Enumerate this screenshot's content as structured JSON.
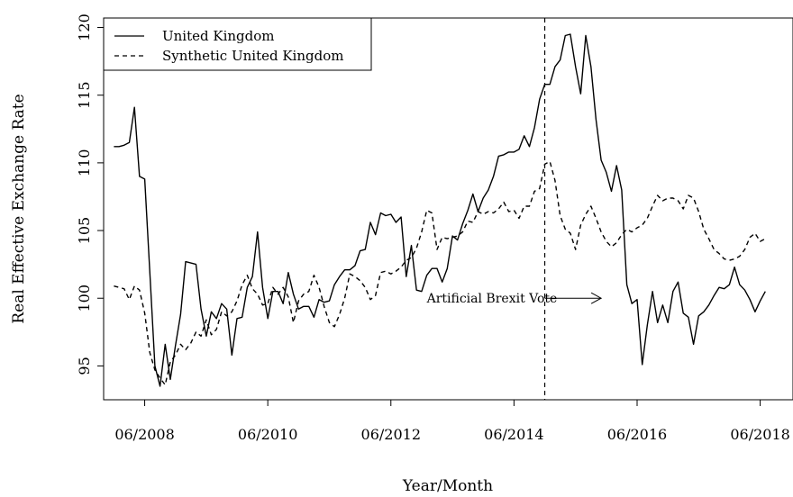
{
  "chart_data": {
    "type": "line",
    "title": "",
    "xlabel": "Year/Month",
    "ylabel": "Real Effective Exchange Rate",
    "x_tick_labels": [
      "06/2008",
      "06/2010",
      "06/2012",
      "06/2014",
      "06/2016",
      "06/2018"
    ],
    "x_tick_values": [
      2008.417,
      2010.417,
      2012.417,
      2014.417,
      2016.417,
      2018.417
    ],
    "y_ticks": [
      95,
      100,
      105,
      110,
      115,
      120
    ],
    "ylim": [
      92.5,
      120.7
    ],
    "xlim": [
      2007.75,
      2018.95
    ],
    "grid": false,
    "legend_position": "top-left",
    "series": [
      {
        "name": "United Kingdom",
        "line_style": "solid",
        "points": [
          [
            2007.917,
            111.2
          ],
          [
            2008.0,
            111.2
          ],
          [
            2008.083,
            111.3
          ],
          [
            2008.167,
            111.5
          ],
          [
            2008.25,
            114.1
          ],
          [
            2008.333,
            109.0
          ],
          [
            2008.417,
            108.8
          ],
          [
            2008.5,
            102.0
          ],
          [
            2008.583,
            95.0
          ],
          [
            2008.667,
            93.5
          ],
          [
            2008.75,
            96.6
          ],
          [
            2008.833,
            94.0
          ],
          [
            2008.917,
            96.5
          ],
          [
            2009.0,
            98.8
          ],
          [
            2009.083,
            102.7
          ],
          [
            2009.167,
            102.6
          ],
          [
            2009.25,
            102.5
          ],
          [
            2009.333,
            99.2
          ],
          [
            2009.417,
            97.2
          ],
          [
            2009.5,
            99.0
          ],
          [
            2009.583,
            98.5
          ],
          [
            2009.667,
            99.6
          ],
          [
            2009.75,
            99.2
          ],
          [
            2009.833,
            95.8
          ],
          [
            2009.917,
            98.5
          ],
          [
            2010.0,
            98.6
          ],
          [
            2010.083,
            100.8
          ],
          [
            2010.167,
            101.6
          ],
          [
            2010.25,
            104.9
          ],
          [
            2010.333,
            100.8
          ],
          [
            2010.417,
            98.5
          ],
          [
            2010.5,
            100.5
          ],
          [
            2010.583,
            100.5
          ],
          [
            2010.667,
            99.6
          ],
          [
            2010.75,
            101.9
          ],
          [
            2010.833,
            100.3
          ],
          [
            2010.917,
            99.2
          ],
          [
            2011.0,
            99.4
          ],
          [
            2011.083,
            99.4
          ],
          [
            2011.167,
            98.6
          ],
          [
            2011.25,
            99.9
          ],
          [
            2011.333,
            99.7
          ],
          [
            2011.417,
            99.8
          ],
          [
            2011.5,
            101.0
          ],
          [
            2011.583,
            101.6
          ],
          [
            2011.667,
            102.1
          ],
          [
            2011.75,
            102.1
          ],
          [
            2011.833,
            102.4
          ],
          [
            2011.917,
            103.5
          ],
          [
            2012.0,
            103.6
          ],
          [
            2012.083,
            105.6
          ],
          [
            2012.167,
            104.7
          ],
          [
            2012.25,
            106.3
          ],
          [
            2012.333,
            106.1
          ],
          [
            2012.417,
            106.2
          ],
          [
            2012.5,
            105.6
          ],
          [
            2012.583,
            106.0
          ],
          [
            2012.667,
            101.6
          ],
          [
            2012.75,
            103.9
          ],
          [
            2012.833,
            100.6
          ],
          [
            2012.917,
            100.5
          ],
          [
            2013.0,
            101.7
          ],
          [
            2013.083,
            102.2
          ],
          [
            2013.167,
            102.2
          ],
          [
            2013.25,
            101.2
          ],
          [
            2013.333,
            102.2
          ],
          [
            2013.417,
            104.6
          ],
          [
            2013.5,
            104.3
          ],
          [
            2013.583,
            105.5
          ],
          [
            2013.667,
            106.5
          ],
          [
            2013.75,
            107.7
          ],
          [
            2013.833,
            106.4
          ],
          [
            2013.917,
            107.4
          ],
          [
            2014.0,
            108.0
          ],
          [
            2014.083,
            109.0
          ],
          [
            2014.167,
            110.5
          ],
          [
            2014.25,
            110.6
          ],
          [
            2014.333,
            110.8
          ],
          [
            2014.417,
            110.8
          ],
          [
            2014.5,
            111.0
          ],
          [
            2014.583,
            112.0
          ],
          [
            2014.667,
            111.2
          ],
          [
            2014.75,
            112.6
          ],
          [
            2014.833,
            114.7
          ],
          [
            2014.917,
            115.8
          ],
          [
            2015.0,
            115.8
          ],
          [
            2015.083,
            117.1
          ],
          [
            2015.167,
            117.6
          ],
          [
            2015.25,
            119.4
          ],
          [
            2015.333,
            119.5
          ],
          [
            2015.417,
            117.1
          ],
          [
            2015.5,
            115.1
          ],
          [
            2015.583,
            119.4
          ],
          [
            2015.667,
            117.1
          ],
          [
            2015.75,
            113.2
          ],
          [
            2015.833,
            110.2
          ],
          [
            2015.917,
            109.3
          ],
          [
            2016.0,
            107.9
          ],
          [
            2016.083,
            109.8
          ],
          [
            2016.167,
            108.0
          ],
          [
            2016.25,
            101.0
          ],
          [
            2016.333,
            99.6
          ],
          [
            2016.417,
            99.9
          ],
          [
            2016.5,
            95.1
          ],
          [
            2016.583,
            98.0
          ],
          [
            2016.667,
            100.5
          ],
          [
            2016.75,
            98.2
          ],
          [
            2016.833,
            99.5
          ],
          [
            2016.917,
            98.2
          ],
          [
            2017.0,
            100.5
          ],
          [
            2017.083,
            101.2
          ],
          [
            2017.167,
            98.9
          ],
          [
            2017.25,
            98.6
          ],
          [
            2017.333,
            96.6
          ],
          [
            2017.417,
            98.7
          ],
          [
            2017.5,
            99.0
          ],
          [
            2017.583,
            99.5
          ],
          [
            2017.667,
            100.2
          ],
          [
            2017.75,
            100.8
          ],
          [
            2017.833,
            100.7
          ],
          [
            2017.917,
            101.0
          ],
          [
            2018.0,
            102.3
          ],
          [
            2018.083,
            101.0
          ],
          [
            2018.167,
            100.6
          ],
          [
            2018.25,
            99.9
          ],
          [
            2018.333,
            99.0
          ],
          [
            2018.417,
            99.8
          ],
          [
            2018.5,
            100.5
          ]
        ]
      },
      {
        "name": "Synthetic United Kingdom",
        "line_style": "dashed",
        "points": [
          [
            2007.917,
            100.9
          ],
          [
            2008.0,
            100.8
          ],
          [
            2008.083,
            100.7
          ],
          [
            2008.167,
            99.9
          ],
          [
            2008.25,
            100.9
          ],
          [
            2008.333,
            100.6
          ],
          [
            2008.417,
            98.9
          ],
          [
            2008.5,
            96.0
          ],
          [
            2008.583,
            94.7
          ],
          [
            2008.667,
            94.1
          ],
          [
            2008.75,
            93.6
          ],
          [
            2008.833,
            95.3
          ],
          [
            2008.917,
            95.8
          ],
          [
            2009.0,
            96.6
          ],
          [
            2009.083,
            96.2
          ],
          [
            2009.167,
            96.7
          ],
          [
            2009.25,
            97.5
          ],
          [
            2009.333,
            97.2
          ],
          [
            2009.417,
            98.4
          ],
          [
            2009.5,
            97.3
          ],
          [
            2009.583,
            97.7
          ],
          [
            2009.667,
            99.0
          ],
          [
            2009.75,
            98.7
          ],
          [
            2009.833,
            99.0
          ],
          [
            2009.917,
            99.8
          ],
          [
            2010.0,
            101.0
          ],
          [
            2010.083,
            101.7
          ],
          [
            2010.167,
            100.7
          ],
          [
            2010.25,
            100.3
          ],
          [
            2010.333,
            99.5
          ],
          [
            2010.417,
            99.6
          ],
          [
            2010.5,
            100.8
          ],
          [
            2010.583,
            100.3
          ],
          [
            2010.667,
            100.8
          ],
          [
            2010.75,
            100.1
          ],
          [
            2010.833,
            98.2
          ],
          [
            2010.917,
            99.8
          ],
          [
            2011.0,
            100.3
          ],
          [
            2011.083,
            100.5
          ],
          [
            2011.167,
            101.7
          ],
          [
            2011.25,
            100.8
          ],
          [
            2011.333,
            99.4
          ],
          [
            2011.417,
            98.2
          ],
          [
            2011.5,
            97.9
          ],
          [
            2011.583,
            98.8
          ],
          [
            2011.667,
            100.0
          ],
          [
            2011.75,
            101.8
          ],
          [
            2011.833,
            101.6
          ],
          [
            2011.917,
            101.3
          ],
          [
            2012.0,
            100.8
          ],
          [
            2012.083,
            99.9
          ],
          [
            2012.167,
            100.2
          ],
          [
            2012.25,
            101.9
          ],
          [
            2012.333,
            102.0
          ],
          [
            2012.417,
            101.8
          ],
          [
            2012.5,
            102.0
          ],
          [
            2012.583,
            102.3
          ],
          [
            2012.667,
            102.8
          ],
          [
            2012.75,
            103.0
          ],
          [
            2012.833,
            103.7
          ],
          [
            2012.917,
            104.9
          ],
          [
            2013.0,
            106.5
          ],
          [
            2013.083,
            106.3
          ],
          [
            2013.167,
            103.6
          ],
          [
            2013.25,
            104.5
          ],
          [
            2013.333,
            104.4
          ],
          [
            2013.417,
            104.5
          ],
          [
            2013.5,
            104.6
          ],
          [
            2013.583,
            104.9
          ],
          [
            2013.667,
            105.7
          ],
          [
            2013.75,
            105.6
          ],
          [
            2013.833,
            106.4
          ],
          [
            2013.917,
            106.2
          ],
          [
            2014.0,
            106.4
          ],
          [
            2014.083,
            106.3
          ],
          [
            2014.167,
            106.6
          ],
          [
            2014.25,
            107.1
          ],
          [
            2014.333,
            106.4
          ],
          [
            2014.417,
            106.5
          ],
          [
            2014.5,
            105.9
          ],
          [
            2014.583,
            106.8
          ],
          [
            2014.667,
            106.8
          ],
          [
            2014.75,
            107.9
          ],
          [
            2014.833,
            108.1
          ],
          [
            2014.917,
            109.9
          ],
          [
            2015.0,
            110.1
          ],
          [
            2015.083,
            108.7
          ],
          [
            2015.167,
            106.1
          ],
          [
            2015.25,
            105.1
          ],
          [
            2015.333,
            104.8
          ],
          [
            2015.417,
            103.6
          ],
          [
            2015.5,
            105.4
          ],
          [
            2015.583,
            106.2
          ],
          [
            2015.667,
            106.8
          ],
          [
            2015.75,
            105.9
          ],
          [
            2015.833,
            104.9
          ],
          [
            2015.917,
            104.2
          ],
          [
            2016.0,
            103.8
          ],
          [
            2016.083,
            104.1
          ],
          [
            2016.167,
            104.7
          ],
          [
            2016.25,
            105.1
          ],
          [
            2016.333,
            104.9
          ],
          [
            2016.417,
            105.2
          ],
          [
            2016.5,
            105.4
          ],
          [
            2016.583,
            105.9
          ],
          [
            2016.667,
            106.8
          ],
          [
            2016.75,
            107.6
          ],
          [
            2016.833,
            107.2
          ],
          [
            2016.917,
            107.4
          ],
          [
            2017.0,
            107.4
          ],
          [
            2017.083,
            107.2
          ],
          [
            2017.167,
            106.6
          ],
          [
            2017.25,
            107.6
          ],
          [
            2017.333,
            107.4
          ],
          [
            2017.417,
            106.4
          ],
          [
            2017.5,
            105.1
          ],
          [
            2017.583,
            104.4
          ],
          [
            2017.667,
            103.6
          ],
          [
            2017.75,
            103.3
          ],
          [
            2017.833,
            102.9
          ],
          [
            2017.917,
            102.8
          ],
          [
            2018.0,
            102.9
          ],
          [
            2018.083,
            103.1
          ],
          [
            2018.167,
            103.6
          ],
          [
            2018.25,
            104.5
          ],
          [
            2018.333,
            104.8
          ],
          [
            2018.417,
            104.2
          ],
          [
            2018.5,
            104.4
          ]
        ]
      }
    ],
    "vertical_line": {
      "x": 2014.917,
      "style": "dashed"
    },
    "annotation": {
      "text": "Artificial Brexit Vote",
      "x": 2013.0,
      "y": 100,
      "arrow_to_x": 2015.833
    }
  }
}
